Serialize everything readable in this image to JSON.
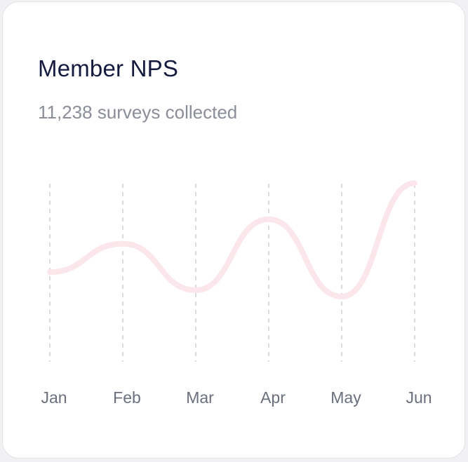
{
  "card": {
    "title": "Member NPS",
    "subtitle": "11,238 surveys collected"
  },
  "colors": {
    "line": "#fbe6ec",
    "grid": "#c9c9cf",
    "title": "#141b3f",
    "subtitle": "#8b8e99",
    "tick": "#6b6f7e"
  },
  "chart_data": {
    "type": "line",
    "title": "Member NPS",
    "subtitle": "11,238 surveys collected",
    "xlabel": "",
    "ylabel": "",
    "categories": [
      "Jan",
      "Feb",
      "Mar",
      "Apr",
      "May",
      "Jun"
    ],
    "series": [
      {
        "values": [
          26,
          48,
          12,
          67,
          7,
          95
        ]
      }
    ],
    "ylim": [
      0,
      100
    ],
    "grid": "vertical-dashed",
    "legend": "none",
    "smooth": true
  }
}
